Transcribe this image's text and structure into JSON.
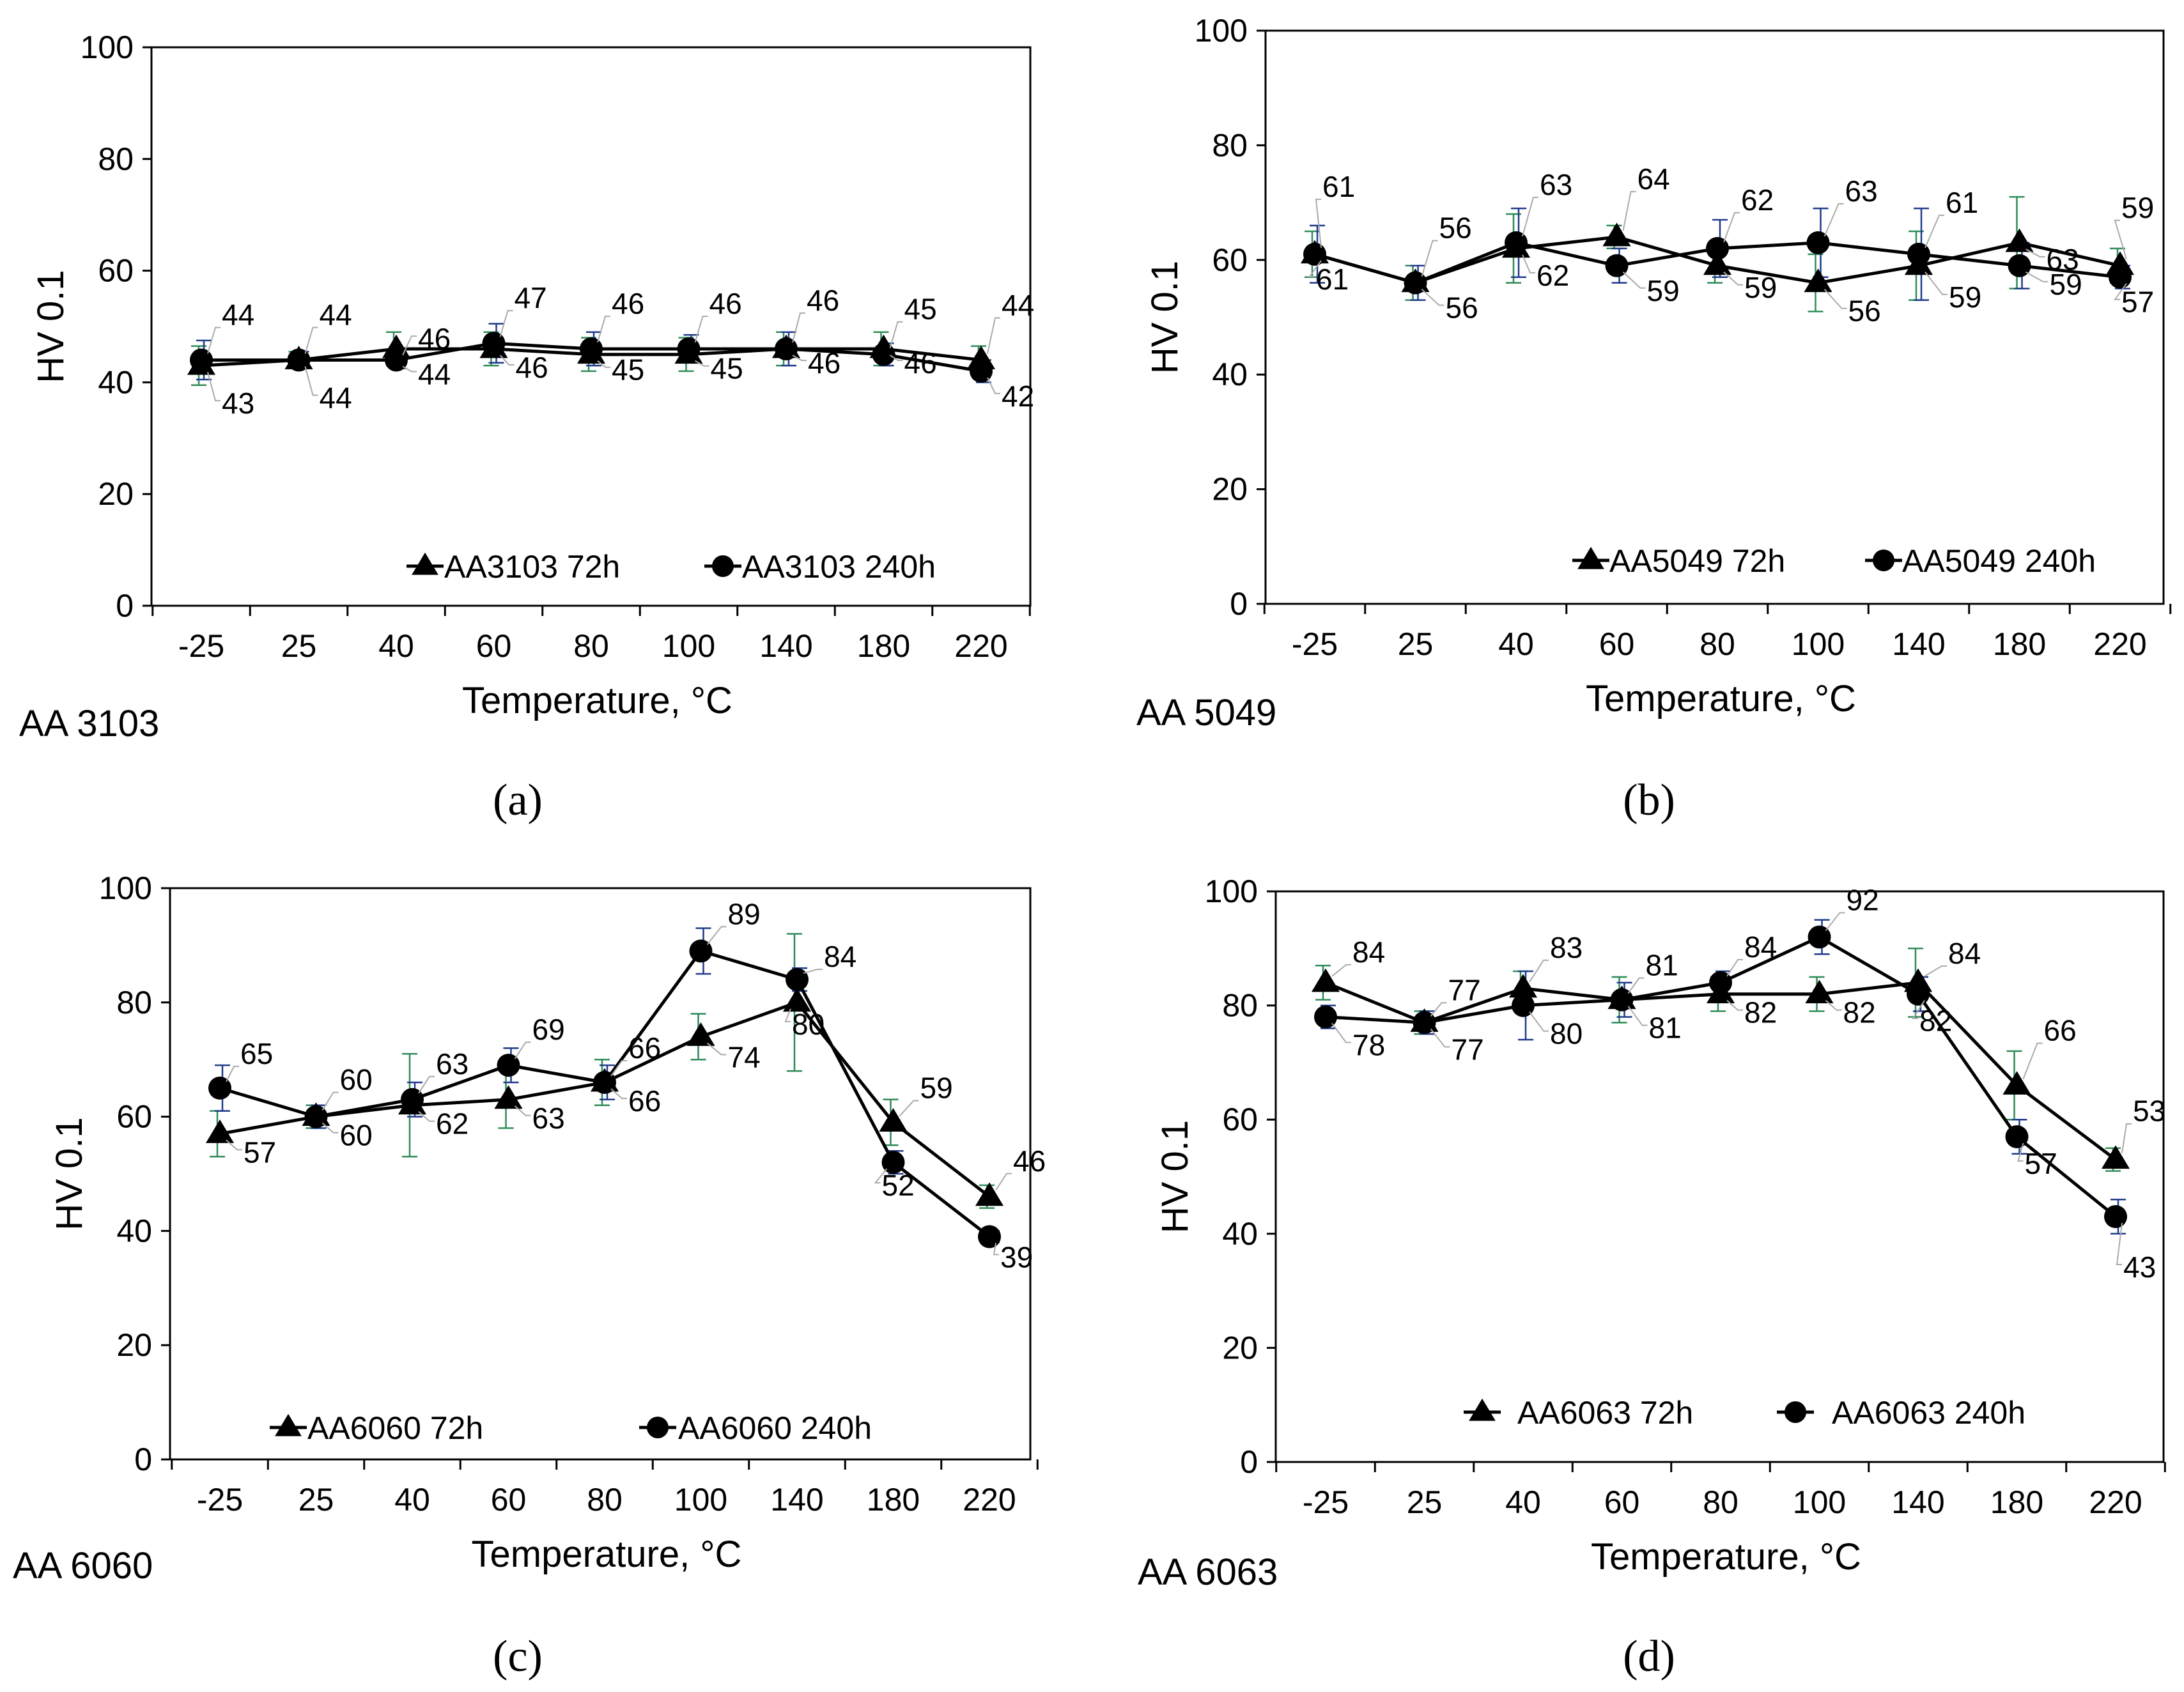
{
  "chart_data": [
    {
      "type": "line",
      "panel": "(a)",
      "alloy_label": "AA 3103",
      "xlabel": "Temperature,  °C",
      "ylabel": "HV 0.1",
      "ylim": [
        0,
        100
      ],
      "yticks": [
        "0",
        "20",
        "40",
        "60",
        "80",
        "100"
      ],
      "categories": [
        "-25",
        "25",
        "40",
        "60",
        "80",
        "100",
        "140",
        "180",
        "220"
      ],
      "grid": false,
      "legend_position": "bottom-right",
      "series": [
        {
          "name": "AA3103 72h",
          "marker": "triangle",
          "values": [
            43,
            44,
            46,
            46,
            45,
            45,
            46,
            46,
            44
          ],
          "labels": [
            "43",
            "44",
            "46",
            "46",
            "45",
            "45",
            "46",
            "46",
            "44"
          ],
          "err": [
            3.5,
            1.5,
            3,
            3,
            3,
            3,
            3,
            3,
            2.5
          ]
        },
        {
          "name": "AA3103 240h",
          "marker": "circle",
          "values": [
            44,
            44,
            44,
            47,
            46,
            46,
            46,
            45,
            42
          ],
          "labels": [
            "44",
            "44",
            "44",
            "47",
            "46",
            "46",
            "46",
            "45",
            "42"
          ],
          "err": [
            3.5,
            1.5,
            1.5,
            3.5,
            3,
            2.5,
            3,
            2,
            2
          ]
        }
      ]
    },
    {
      "type": "line",
      "panel": "(b)",
      "alloy_label": "AA 5049",
      "xlabel": "Temperature,  °C",
      "ylabel": "HV 0.1",
      "ylim": [
        0,
        100
      ],
      "yticks": [
        "0",
        "20",
        "40",
        "60",
        "80",
        "100"
      ],
      "categories": [
        "-25",
        "25",
        "40",
        "60",
        "80",
        "100",
        "140",
        "180",
        "220"
      ],
      "grid": false,
      "legend_position": "bottom-right",
      "series": [
        {
          "name": "AA5049 72h",
          "marker": "triangle",
          "values": [
            61,
            56,
            62,
            64,
            59,
            56,
            59,
            63,
            59
          ],
          "labels": [
            "61",
            "56",
            "62",
            "64",
            "59",
            "56",
            "59",
            "63",
            "59"
          ],
          "err": [
            4,
            3,
            6,
            2,
            3,
            5,
            6,
            8,
            3
          ]
        },
        {
          "name": "AA5049 240h",
          "marker": "circle",
          "values": [
            61,
            56,
            63,
            59,
            62,
            63,
            61,
            59,
            57
          ],
          "labels": [
            "61",
            "56",
            "63",
            "59",
            "62",
            "63",
            "61",
            "59",
            "57"
          ],
          "err": [
            5,
            3,
            6,
            3,
            5,
            6,
            8,
            4,
            2
          ]
        }
      ]
    },
    {
      "type": "line",
      "panel": "(c)",
      "alloy_label": "AA 6060",
      "xlabel": "Temperature,  °C",
      "ylabel": "HV 0.1",
      "ylim": [
        0,
        100
      ],
      "yticks": [
        "0",
        "20",
        "40",
        "60",
        "80",
        "100"
      ],
      "categories": [
        "-25",
        "25",
        "40",
        "60",
        "80",
        "100",
        "140",
        "180",
        "220"
      ],
      "grid": false,
      "legend_position": "bottom",
      "series": [
        {
          "name": "AA6060 72h",
          "marker": "triangle",
          "values": [
            57,
            60,
            62,
            63,
            66,
            74,
            80,
            59,
            46
          ],
          "labels": [
            "57",
            "60",
            "62",
            "63",
            "66",
            "74",
            "80",
            "59",
            "46"
          ],
          "err": [
            4,
            2,
            9,
            5,
            4,
            4,
            12,
            4,
            2
          ]
        },
        {
          "name": "AA6060 240h",
          "marker": "circle",
          "values": [
            65,
            60,
            63,
            69,
            66,
            89,
            84,
            52,
            39
          ],
          "labels": [
            "65",
            "60",
            "63",
            "69",
            "66",
            "89",
            "84",
            "52",
            "39"
          ],
          "err": [
            4,
            2,
            3,
            3,
            3,
            4,
            2,
            2,
            1
          ]
        }
      ]
    },
    {
      "type": "line",
      "panel": "(d)",
      "alloy_label": "AA 6063",
      "xlabel": "Temperature,  °C",
      "ylabel": "HV 0.1",
      "ylim": [
        0,
        100
      ],
      "yticks": [
        "0",
        "20",
        "40",
        "60",
        "80",
        "100"
      ],
      "categories": [
        "-25",
        "25",
        "40",
        "60",
        "80",
        "100",
        "140",
        "180",
        "220"
      ],
      "grid": false,
      "legend_position": "bottom",
      "series": [
        {
          "name": "AA6063 72h",
          "marker": "triangle",
          "values": [
            84,
            77,
            83,
            81,
            82,
            82,
            84,
            66,
            53
          ],
          "labels": [
            "84",
            "77",
            "83",
            "81",
            "82",
            "82",
            "84",
            "66",
            "53"
          ],
          "err": [
            3,
            2,
            3,
            4,
            3,
            3,
            6,
            6,
            2
          ]
        },
        {
          "name": "AA6063 240h",
          "marker": "circle",
          "values": [
            78,
            77,
            80,
            81,
            84,
            92,
            82,
            57,
            43
          ],
          "labels": [
            "78",
            "77",
            "80",
            "81",
            "84",
            "92",
            "82",
            "57",
            "43"
          ],
          "err": [
            2,
            2,
            6,
            3,
            2,
            3,
            3,
            3,
            3
          ]
        }
      ]
    }
  ],
  "captions": [
    "(a)",
    "(b)",
    "(c)",
    "(d)"
  ],
  "colors": {
    "line": "#000000",
    "err_72h": "#2e8b57",
    "err_240h": "#1f3a8a",
    "err_generic": "#555555",
    "leader": "#aaaaaa",
    "axis": "#000000"
  }
}
